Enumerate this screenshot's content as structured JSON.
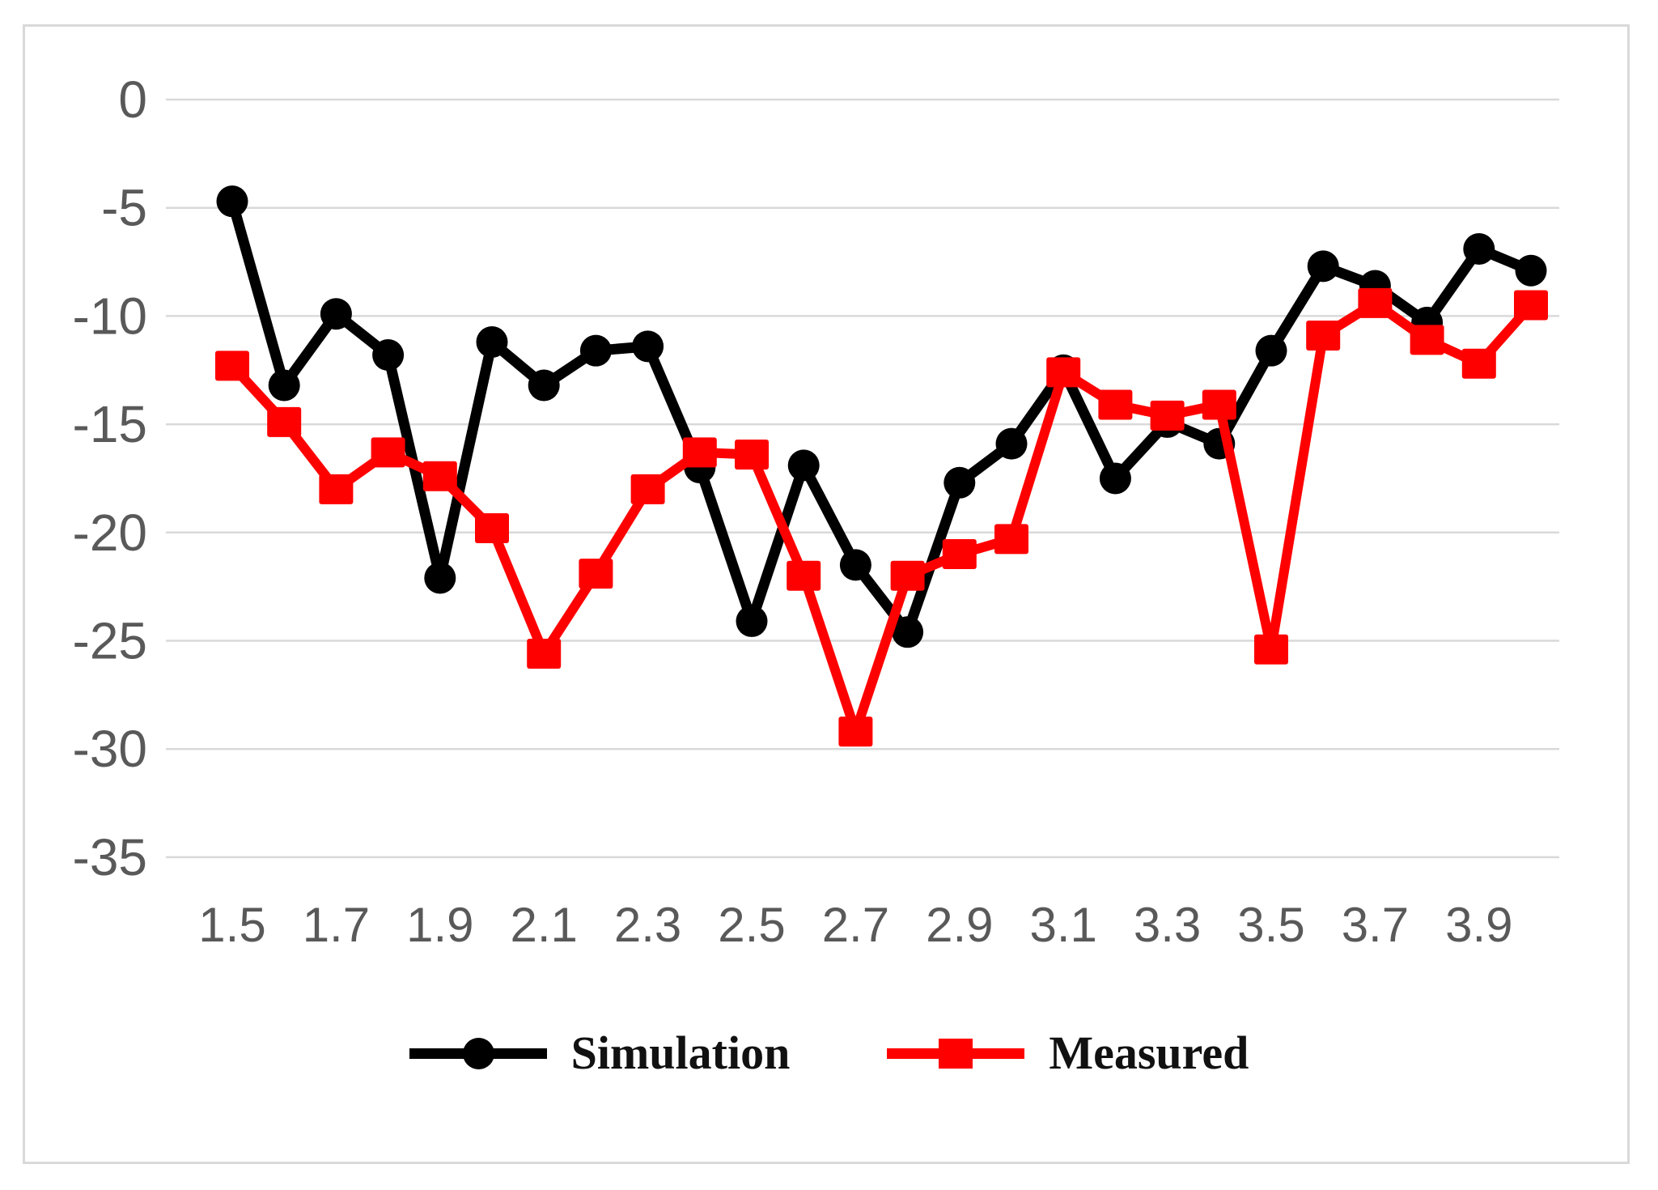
{
  "chart_data": {
    "type": "line",
    "x": [
      1.5,
      1.6,
      1.7,
      1.8,
      1.9,
      2.0,
      2.1,
      2.2,
      2.3,
      2.4,
      2.5,
      2.6,
      2.7,
      2.8,
      2.9,
      3.0,
      3.1,
      3.2,
      3.3,
      3.4,
      3.5,
      3.6,
      3.7,
      3.8,
      3.9,
      4.0
    ],
    "x_tick_labels": [
      "1.5",
      "1.7",
      "1.9",
      "2.1",
      "2.3",
      "2.5",
      "2.7",
      "2.9",
      "3.1",
      "3.3",
      "3.5",
      "3.7",
      "3.9"
    ],
    "y_ticks": [
      0,
      -5,
      -10,
      -15,
      -20,
      -25,
      -30,
      -35
    ],
    "ylim": [
      -35,
      0
    ],
    "grid": true,
    "legend_position": "bottom-center",
    "title": "",
    "xlabel": "",
    "ylabel": "",
    "series": [
      {
        "name": "Simulation",
        "color": "#000000",
        "marker": "circle",
        "values": [
          -4.7,
          -13.2,
          -9.9,
          -11.8,
          -22.1,
          -11.2,
          -13.2,
          -11.6,
          -11.4,
          -17.0,
          -24.1,
          -16.9,
          -21.5,
          -24.6,
          -17.7,
          -15.9,
          -12.5,
          -17.5,
          -14.9,
          -15.9,
          -11.6,
          -7.7,
          -8.6,
          -10.3,
          -6.9,
          -7.9
        ]
      },
      {
        "name": "Measured",
        "color": "#ff0000",
        "marker": "square",
        "values": [
          -12.3,
          -14.9,
          -18.0,
          -16.3,
          -17.4,
          -19.8,
          -25.6,
          -21.9,
          -18.0,
          -16.3,
          -16.4,
          -22.0,
          -29.2,
          -22.0,
          -21.0,
          -20.3,
          -12.6,
          -14.1,
          -14.6,
          -14.1,
          -25.4,
          -10.9,
          -9.4,
          -11.1,
          -12.2,
          -9.5
        ]
      }
    ]
  },
  "colors": {
    "background": "#ffffff",
    "frame_border": "#d9d9d9",
    "gridline": "#d9d9d9",
    "tick_label": "#595959",
    "simulation": "#000000",
    "measured": "#ff0000",
    "legend_text": "#111111"
  },
  "legend": {
    "items": [
      {
        "label": "Simulation"
      },
      {
        "label": "Measured"
      }
    ]
  }
}
